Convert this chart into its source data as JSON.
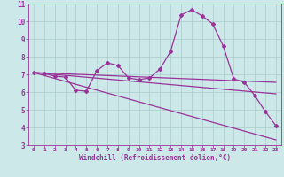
{
  "title": "",
  "xlabel": "Windchill (Refroidissement éolien,°C)",
  "ylabel": "",
  "background_color": "#cce8e8",
  "grid_color": "#aacccc",
  "line_color": "#993399",
  "xlim": [
    -0.5,
    23.5
  ],
  "ylim": [
    3,
    11
  ],
  "xticks": [
    0,
    1,
    2,
    3,
    4,
    5,
    6,
    7,
    8,
    9,
    10,
    11,
    12,
    13,
    14,
    15,
    16,
    17,
    18,
    19,
    20,
    21,
    22,
    23
  ],
  "yticks": [
    3,
    4,
    5,
    6,
    7,
    8,
    9,
    10,
    11
  ],
  "series1_x": [
    0,
    1,
    2,
    3,
    4,
    5,
    6,
    7,
    8,
    9,
    10,
    11,
    12,
    13,
    14,
    15,
    16,
    17,
    18,
    19,
    20,
    21,
    22,
    23
  ],
  "series1_y": [
    7.1,
    7.05,
    6.9,
    6.85,
    6.1,
    6.05,
    7.2,
    7.65,
    7.5,
    6.8,
    6.7,
    6.8,
    7.3,
    8.3,
    10.35,
    10.65,
    10.3,
    9.85,
    8.6,
    6.75,
    6.55,
    5.8,
    4.9,
    4.1
  ],
  "series2_x": [
    0,
    23
  ],
  "series2_y": [
    7.1,
    6.55
  ],
  "series3_x": [
    0,
    23
  ],
  "series3_y": [
    7.1,
    5.9
  ],
  "series4_x": [
    0,
    23
  ],
  "series4_y": [
    7.1,
    3.3
  ],
  "marker": "D",
  "markersize": 2,
  "linewidth": 0.9
}
